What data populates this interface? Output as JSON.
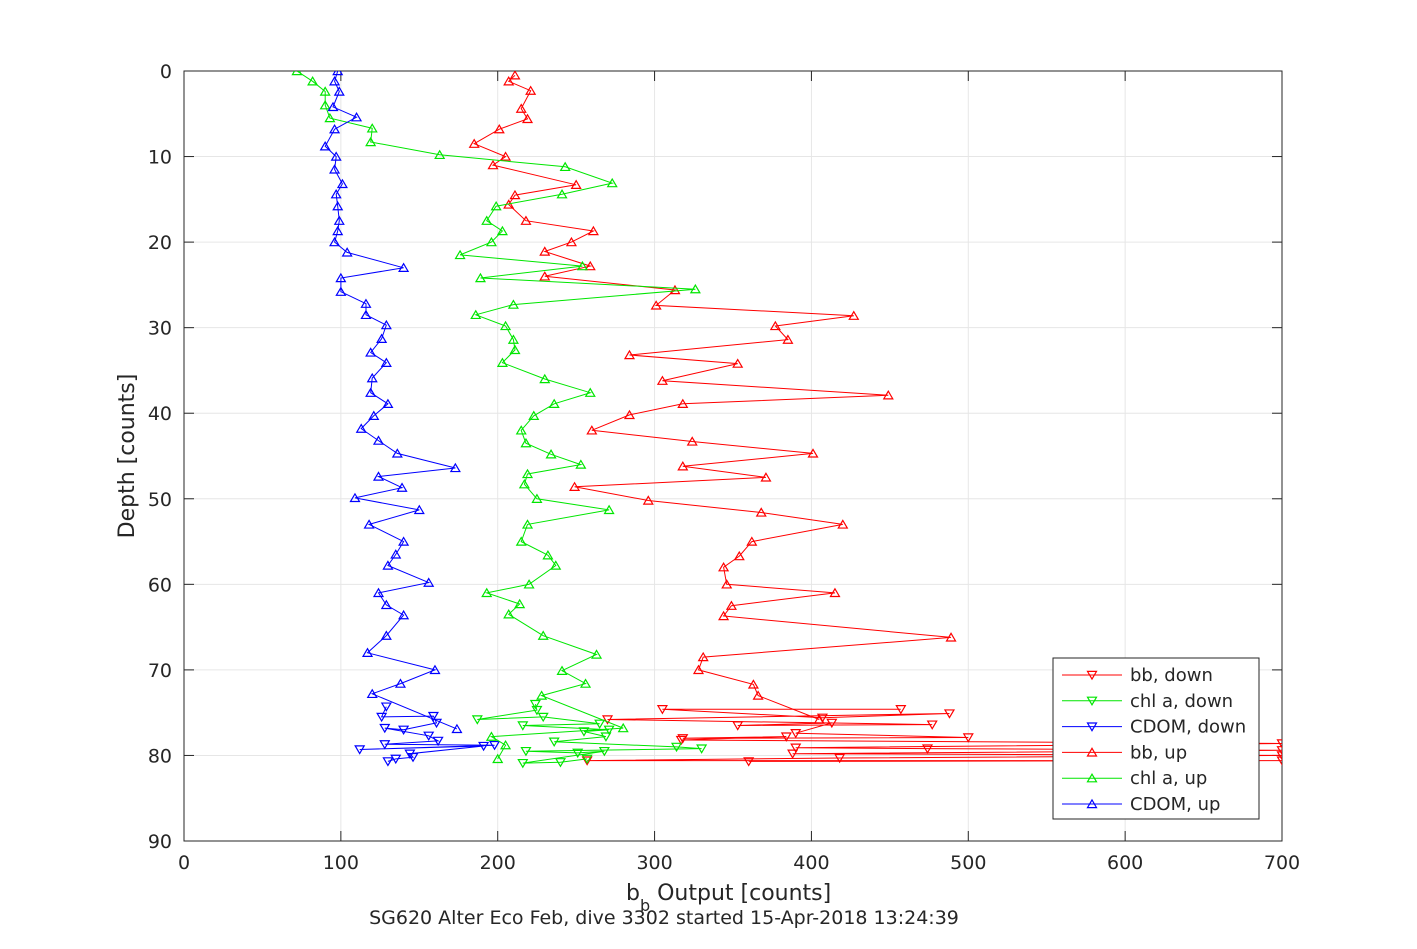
{
  "chart_data": {
    "type": "line",
    "xlabel_main": "b",
    "xlabel_sub": "b",
    "xlabel_rest": " Output [counts]",
    "ylabel": "Depth [counts]",
    "caption": "SG620 Alter Eco Feb, dive 3302 started 15-Apr-2018 13:24:39",
    "xlim": [
      0,
      700
    ],
    "ylim": [
      0,
      90
    ],
    "y_reversed": true,
    "grid": true,
    "legend_position": "bottom-right",
    "xticks": [
      "0",
      "100",
      "200",
      "300",
      "400",
      "500",
      "600",
      "700"
    ],
    "yticks": [
      "0",
      "10",
      "20",
      "30",
      "40",
      "50",
      "60",
      "70",
      "80",
      "90"
    ],
    "series": [
      {
        "name": "bb, down",
        "color": "#ff0000",
        "marker": "triangle-down",
        "points": [
          [
            457,
            74.6
          ],
          [
            305,
            74.6
          ],
          [
            407,
            75.6
          ],
          [
            488,
            75.1
          ],
          [
            270,
            75.8
          ],
          [
            477,
            76.4
          ],
          [
            353,
            76.5
          ],
          [
            413,
            76.2
          ],
          [
            390,
            77.4
          ],
          [
            500,
            77.9
          ],
          [
            318,
            78.0
          ],
          [
            384,
            77.8
          ],
          [
            317,
            78.2
          ],
          [
            700,
            78.6
          ],
          [
            390,
            79.1
          ],
          [
            474,
            79.2
          ],
          [
            700,
            79.4
          ],
          [
            388,
            79.8
          ],
          [
            700,
            80.0
          ],
          [
            418,
            80.3
          ],
          [
            257,
            80.6
          ],
          [
            700,
            80.6
          ],
          [
            360,
            80.7
          ]
        ]
      },
      {
        "name": "chl a, down",
        "color": "#00e600",
        "marker": "triangle-down",
        "points": [
          [
            224,
            74.0
          ],
          [
            225,
            74.7
          ],
          [
            187,
            75.8
          ],
          [
            229,
            75.5
          ],
          [
            265,
            76.3
          ],
          [
            216,
            76.5
          ],
          [
            271,
            77.0
          ],
          [
            255,
            77.2
          ],
          [
            269,
            77.8
          ],
          [
            236,
            78.4
          ],
          [
            314,
            79.0
          ],
          [
            330,
            79.2
          ],
          [
            218,
            79.5
          ],
          [
            251,
            79.7
          ],
          [
            268,
            79.5
          ],
          [
            216,
            80.9
          ],
          [
            240,
            80.8
          ],
          [
            257,
            80.4
          ]
        ]
      },
      {
        "name": "CDOM, down",
        "color": "#0000ff",
        "marker": "triangle-down",
        "points": [
          [
            129,
            74.3
          ],
          [
            126,
            75.5
          ],
          [
            159,
            75.4
          ],
          [
            161,
            76.2
          ],
          [
            140,
            77.0
          ],
          [
            128,
            76.8
          ],
          [
            156,
            77.7
          ],
          [
            162,
            78.3
          ],
          [
            128,
            78.7
          ],
          [
            198,
            78.8
          ],
          [
            112,
            79.3
          ],
          [
            191,
            78.9
          ],
          [
            144,
            79.8
          ],
          [
            146,
            80.2
          ],
          [
            135,
            80.4
          ],
          [
            130,
            80.7
          ]
        ]
      },
      {
        "name": "bb, up",
        "color": "#ff0000",
        "marker": "triangle-up",
        "points": [
          [
            211,
            0.5
          ],
          [
            207,
            1.2
          ],
          [
            221,
            2.3
          ],
          [
            215,
            4.4
          ],
          [
            219,
            5.6
          ],
          [
            201,
            6.8
          ],
          [
            185,
            8.5
          ],
          [
            205,
            10.0
          ],
          [
            197,
            11.0
          ],
          [
            250,
            13.3
          ],
          [
            211,
            14.5
          ],
          [
            207,
            15.6
          ],
          [
            218,
            17.5
          ],
          [
            261,
            18.7
          ],
          [
            247,
            20.0
          ],
          [
            230,
            21.1
          ],
          [
            259,
            22.8
          ],
          [
            230,
            24.0
          ],
          [
            313,
            25.6
          ],
          [
            301,
            27.4
          ],
          [
            427,
            28.6
          ],
          [
            377,
            29.8
          ],
          [
            385,
            31.4
          ],
          [
            284,
            33.2
          ],
          [
            353,
            34.2
          ],
          [
            305,
            36.2
          ],
          [
            449,
            37.9
          ],
          [
            318,
            38.9
          ],
          [
            284,
            40.2
          ],
          [
            260,
            42.0
          ],
          [
            324,
            43.3
          ],
          [
            401,
            44.7
          ],
          [
            318,
            46.2
          ],
          [
            371,
            47.5
          ],
          [
            249,
            48.6
          ],
          [
            296,
            50.2
          ],
          [
            368,
            51.6
          ],
          [
            420,
            53.0
          ],
          [
            362,
            55.0
          ],
          [
            354,
            56.7
          ],
          [
            344,
            58.0
          ],
          [
            346,
            60.0
          ],
          [
            415,
            61.0
          ],
          [
            349,
            62.5
          ],
          [
            344,
            63.7
          ],
          [
            489,
            66.2
          ],
          [
            331,
            68.5
          ],
          [
            328,
            70.0
          ],
          [
            363,
            71.7
          ],
          [
            366,
            73.0
          ],
          [
            405,
            75.8
          ]
        ]
      },
      {
        "name": "chl a, up",
        "color": "#00e600",
        "marker": "triangle-up",
        "points": [
          [
            72,
            0
          ],
          [
            82,
            1.2
          ],
          [
            90,
            2.4
          ],
          [
            90,
            4.0
          ],
          [
            93,
            5.5
          ],
          [
            120,
            6.7
          ],
          [
            119,
            8.3
          ],
          [
            163,
            9.8
          ],
          [
            243,
            11.2
          ],
          [
            273,
            13.1
          ],
          [
            241,
            14.4
          ],
          [
            199,
            15.8
          ],
          [
            193,
            17.5
          ],
          [
            203,
            18.7
          ],
          [
            196,
            20.0
          ],
          [
            176,
            21.5
          ],
          [
            254,
            22.8
          ],
          [
            189,
            24.2
          ],
          [
            326,
            25.5
          ],
          [
            210,
            27.3
          ],
          [
            186,
            28.5
          ],
          [
            205,
            29.8
          ],
          [
            210,
            31.4
          ],
          [
            211,
            32.6
          ],
          [
            203,
            34.1
          ],
          [
            230,
            36.0
          ],
          [
            259,
            37.6
          ],
          [
            236,
            38.9
          ],
          [
            223,
            40.3
          ],
          [
            215,
            42.0
          ],
          [
            218,
            43.5
          ],
          [
            234,
            44.8
          ],
          [
            253,
            46.0
          ],
          [
            219,
            47.1
          ],
          [
            217,
            48.3
          ],
          [
            225,
            50.0
          ],
          [
            271,
            51.3
          ],
          [
            219,
            53.0
          ],
          [
            215,
            55.0
          ],
          [
            232,
            56.6
          ],
          [
            237,
            57.8
          ],
          [
            220,
            60.0
          ],
          [
            193,
            61.0
          ],
          [
            214,
            62.3
          ],
          [
            207,
            63.5
          ],
          [
            229,
            66.0
          ],
          [
            263,
            68.2
          ],
          [
            241,
            70.1
          ],
          [
            256,
            71.6
          ],
          [
            228,
            73.0
          ],
          [
            280,
            76.8
          ],
          [
            196,
            77.8
          ],
          [
            205,
            78.8
          ],
          [
            200,
            80.4
          ]
        ]
      },
      {
        "name": "CDOM, up",
        "color": "#0000ff",
        "marker": "triangle-up",
        "points": [
          [
            98,
            0
          ],
          [
            96,
            1.2
          ],
          [
            99,
            2.4
          ],
          [
            95,
            4.2
          ],
          [
            110,
            5.4
          ],
          [
            96,
            6.8
          ],
          [
            90,
            8.8
          ],
          [
            97,
            10.0
          ],
          [
            96,
            11.5
          ],
          [
            101,
            13.2
          ],
          [
            97,
            14.4
          ],
          [
            98,
            15.8
          ],
          [
            99,
            17.5
          ],
          [
            98,
            18.7
          ],
          [
            96,
            20.0
          ],
          [
            104,
            21.2
          ],
          [
            140,
            23.0
          ],
          [
            100,
            24.2
          ],
          [
            100,
            25.8
          ],
          [
            116,
            27.2
          ],
          [
            116,
            28.5
          ],
          [
            129,
            29.7
          ],
          [
            126,
            31.3
          ],
          [
            119,
            32.9
          ],
          [
            129,
            34.1
          ],
          [
            120,
            35.9
          ],
          [
            119,
            37.6
          ],
          [
            130,
            38.9
          ],
          [
            121,
            40.3
          ],
          [
            113,
            41.8
          ],
          [
            124,
            43.2
          ],
          [
            136,
            44.7
          ],
          [
            173,
            46.4
          ],
          [
            124,
            47.4
          ],
          [
            139,
            48.7
          ],
          [
            109,
            49.9
          ],
          [
            150,
            51.3
          ],
          [
            118,
            53.0
          ],
          [
            140,
            55.0
          ],
          [
            135,
            56.5
          ],
          [
            130,
            57.8
          ],
          [
            156,
            59.8
          ],
          [
            124,
            61.0
          ],
          [
            129,
            62.4
          ],
          [
            140,
            63.6
          ],
          [
            129,
            66.0
          ],
          [
            117,
            68.0
          ],
          [
            160,
            70.0
          ],
          [
            138,
            71.6
          ],
          [
            120,
            72.8
          ],
          [
            174,
            76.9
          ]
        ]
      }
    ]
  }
}
